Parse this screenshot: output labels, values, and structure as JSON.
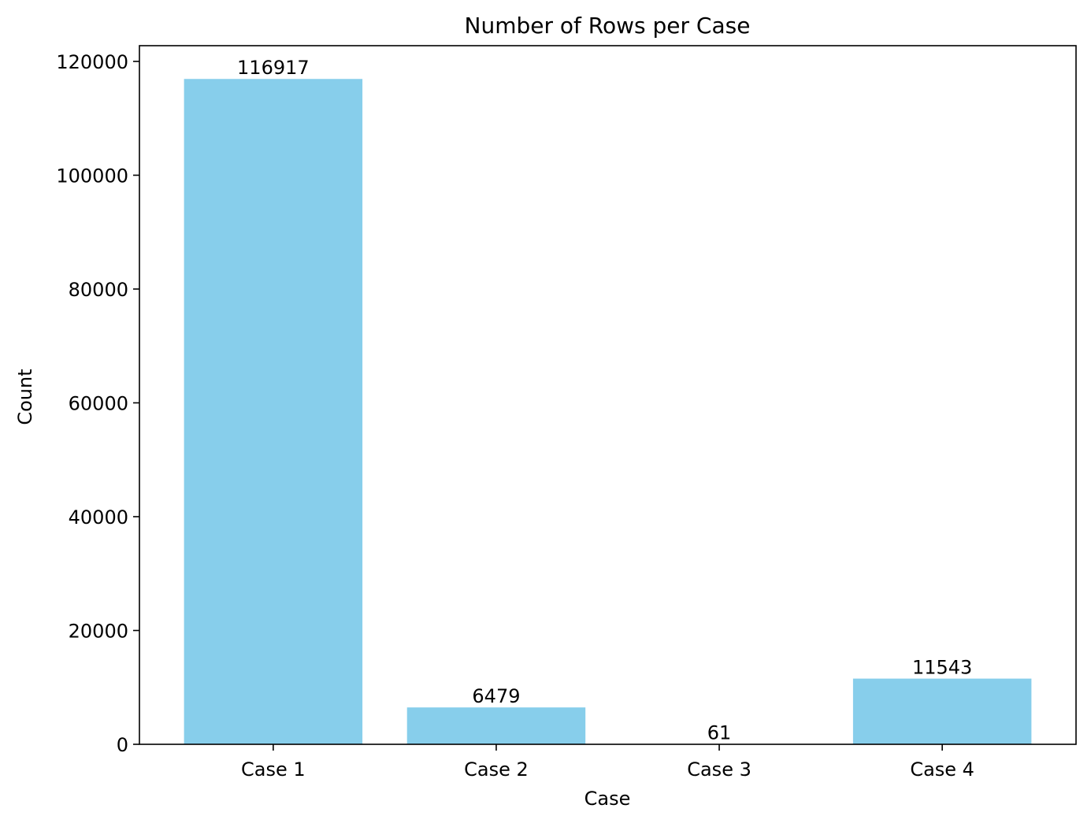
{
  "chart_data": {
    "type": "bar",
    "title": "Number of Rows per Case",
    "xlabel": "Case",
    "ylabel": "Count",
    "categories": [
      "Case 1",
      "Case 2",
      "Case 3",
      "Case 4"
    ],
    "values": [
      116917,
      6479,
      61,
      11543
    ],
    "data_labels": [
      "116917",
      "6479",
      "61",
      "11543"
    ],
    "ylim": [
      0,
      122763
    ],
    "yticks": [
      0,
      20000,
      40000,
      60000,
      80000,
      100000,
      120000
    ],
    "ytick_labels": [
      "0",
      "20000",
      "40000",
      "60000",
      "80000",
      "100000",
      "120000"
    ],
    "bar_color": "#87ceeb",
    "grid": false,
    "legend": "none"
  }
}
